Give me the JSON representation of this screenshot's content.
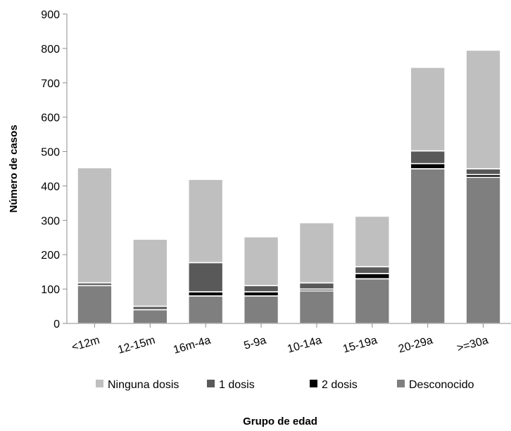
{
  "chart_data": {
    "type": "bar",
    "stacked": true,
    "categories": [
      "<12m",
      "12-15m",
      "16m-4a",
      "5-9a",
      "10-14a",
      "15-19a",
      "20-29a",
      ">=30a"
    ],
    "series": [
      {
        "name": "Desconocido",
        "color": "#7f7f7f",
        "values": [
          110,
          40,
          80,
          80,
          95,
          130,
          450,
          425
        ]
      },
      {
        "name": "2 dosis",
        "color": "#000000",
        "values": [
          0,
          0,
          12,
          12,
          5,
          15,
          15,
          8
        ]
      },
      {
        "name": "1 dosis",
        "color": "#595959",
        "values": [
          8,
          10,
          85,
          18,
          18,
          20,
          37,
          17
        ]
      },
      {
        "name": "Ninguna dosis",
        "color": "#bfbfbf",
        "values": [
          335,
          195,
          242,
          142,
          175,
          147,
          243,
          345
        ]
      }
    ],
    "legend_order": [
      "Ninguna dosis",
      "1 dosis",
      "2 dosis",
      "Desconocido"
    ],
    "title": "",
    "xlabel": "Grupo de edad",
    "ylabel": "Número de casos",
    "ylim": [
      0,
      900
    ],
    "yticks": [
      0,
      100,
      200,
      300,
      400,
      500,
      600,
      700,
      800,
      900
    ],
    "grid": false,
    "legend_position": "bottom"
  }
}
